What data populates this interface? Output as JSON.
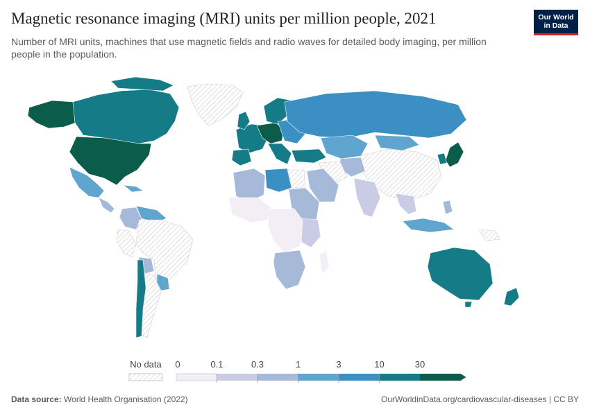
{
  "header": {
    "title": "Magnetic resonance imaging (MRI) units per million people, 2021",
    "subtitle": "Number of MRI units, machines that use magnetic fields and radio waves for detailed body imaging, per million people in the population."
  },
  "logo": {
    "line1": "Our World",
    "line2": "in Data"
  },
  "legend": {
    "no_data_label": "No data",
    "thresholds": [
      "0",
      "0.1",
      "0.3",
      "1",
      "3",
      "10",
      "30"
    ],
    "colors": [
      "#f3eef6",
      "#c9cce4",
      "#a7b9d9",
      "#5fa5d0",
      "#3b8fc2",
      "#157b86",
      "#0b5c4a"
    ],
    "no_data_color": "#e3e3e3"
  },
  "footer": {
    "source_label": "Data source:",
    "source_text": "World Health Organisation (2022)",
    "right_text": "OurWorldinData.org/cardiovascular-diseases | CC BY"
  },
  "map_regions": [
    {
      "region": "Canada",
      "class": 5
    },
    {
      "region": "United States",
      "class": 6
    },
    {
      "region": "Mexico",
      "class": 3
    },
    {
      "region": "Brazil",
      "class": -1
    },
    {
      "region": "Chile",
      "class": 5
    },
    {
      "region": "Argentina",
      "class": -1
    },
    {
      "region": "Europe",
      "class": 5
    },
    {
      "region": "Russia",
      "class": 4
    },
    {
      "region": "Kazakhstan",
      "class": 3
    },
    {
      "region": "China",
      "class": -1
    },
    {
      "region": "India",
      "class": 1
    },
    {
      "region": "Japan",
      "class": 6
    },
    {
      "region": "Australia",
      "class": 5
    },
    {
      "region": "New Zealand",
      "class": 5
    },
    {
      "region": "Southern Africa",
      "class": 2
    },
    {
      "region": "Central Africa",
      "class": 0
    },
    {
      "region": "Libya",
      "class": 4
    },
    {
      "region": "Saudi Arabia",
      "class": 2
    }
  ]
}
